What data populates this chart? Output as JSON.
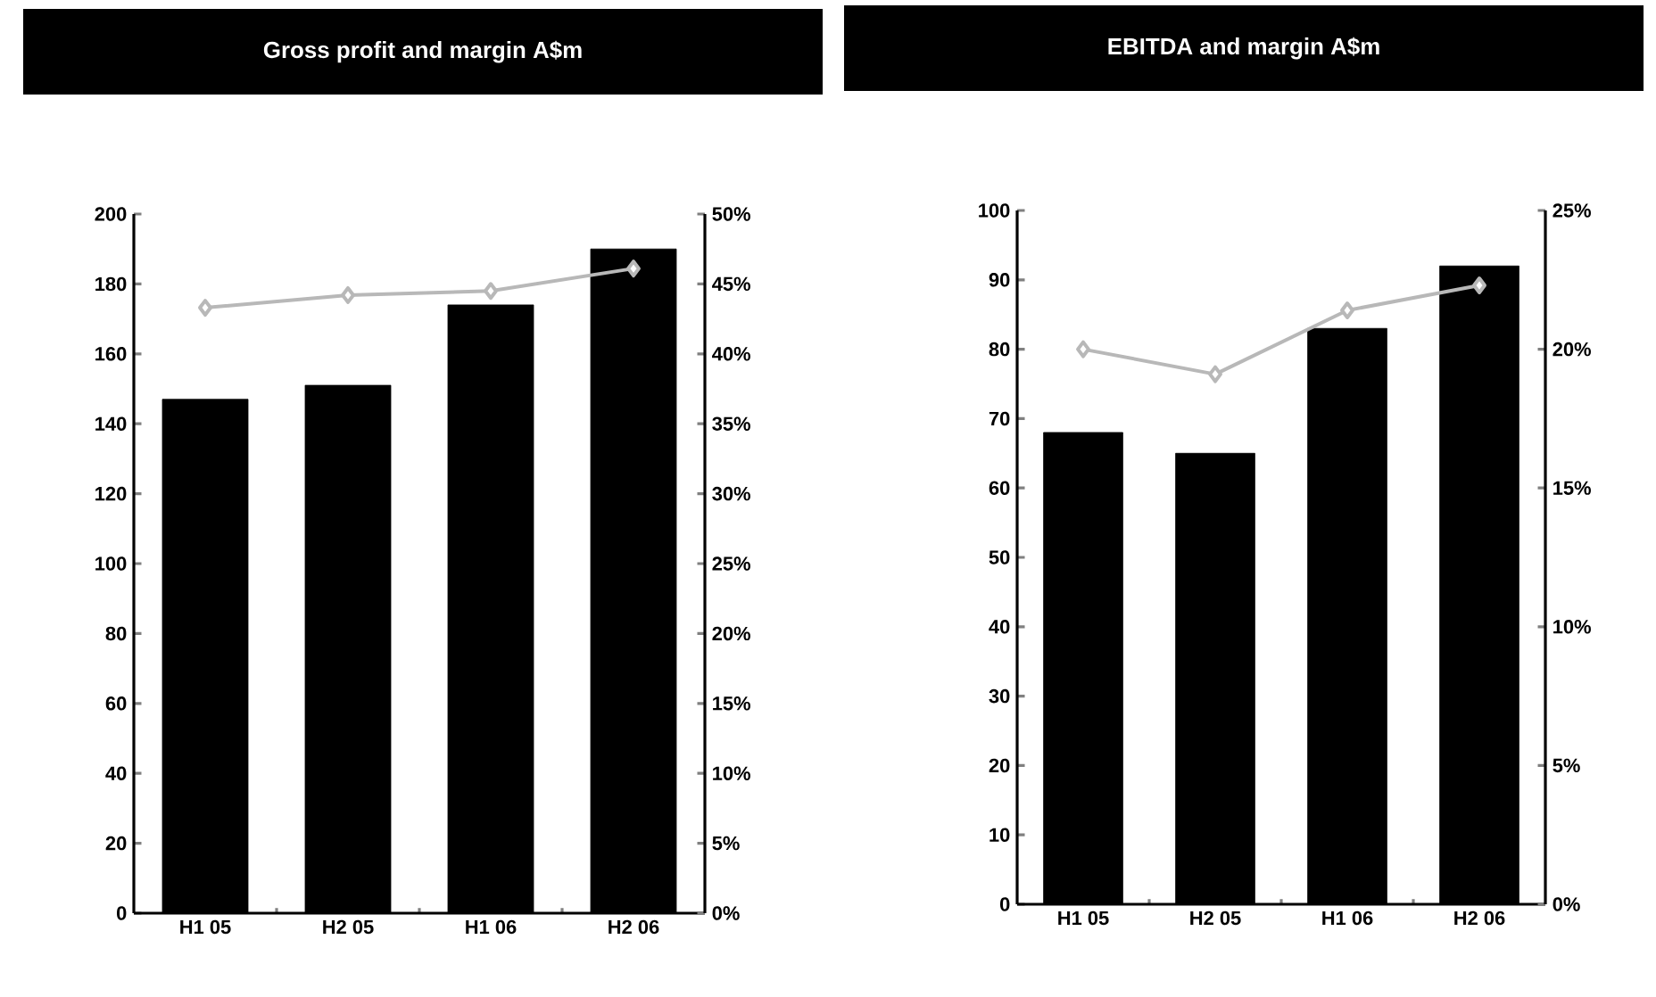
{
  "chart_data": [
    {
      "type": "bar",
      "title": "Gross profit and margin A$m",
      "categories": [
        "H1 05",
        "H2 05",
        "H1 06",
        "H2 06"
      ],
      "series": [
        {
          "color": "#000000",
          "values": [
            147,
            151,
            174,
            190
          ]
        },
        {
          "type": "line",
          "axis": "y2",
          "color": "#b8b8b8",
          "marker": "diamond",
          "values": [
            43.3,
            44.2,
            44.5,
            46.1
          ]
        }
      ],
      "ylim": [
        0,
        200
      ],
      "yticks": [
        0,
        20,
        40,
        60,
        80,
        100,
        120,
        140,
        160,
        180,
        200
      ],
      "y2lim": [
        0,
        50
      ],
      "y2ticks": [
        {
          "value": 0,
          "label": "0%"
        },
        {
          "value": 5,
          "label": "5%"
        },
        {
          "value": 10,
          "label": "10%"
        },
        {
          "value": 15,
          "label": "15%"
        },
        {
          "value": 20,
          "label": "20%"
        },
        {
          "value": 25,
          "label": "25%"
        },
        {
          "value": 30,
          "label": "30%"
        },
        {
          "value": 35,
          "label": "35%"
        },
        {
          "value": 40,
          "label": "40%"
        },
        {
          "value": 45,
          "label": "45%"
        },
        {
          "value": 50,
          "label": "50%"
        }
      ]
    },
    {
      "type": "bar",
      "title": "EBITDA and margin A$m",
      "categories": [
        "H1 05",
        "H2 05",
        "H1 06",
        "H2 06"
      ],
      "series": [
        {
          "color": "#000000",
          "values": [
            68,
            65,
            83,
            92
          ]
        },
        {
          "type": "line",
          "axis": "y2",
          "color": "#b8b8b8",
          "marker": "diamond",
          "values": [
            20.0,
            19.1,
            21.4,
            22.3
          ]
        }
      ],
      "ylim": [
        0,
        100
      ],
      "yticks": [
        0,
        10,
        20,
        30,
        40,
        50,
        60,
        70,
        80,
        90,
        100
      ],
      "y2lim": [
        0,
        25
      ],
      "y2ticks": [
        {
          "value": 0,
          "label": "0%"
        },
        {
          "value": 5,
          "label": "5%"
        },
        {
          "value": 10,
          "label": "10%"
        },
        {
          "value": 15,
          "label": "15%"
        },
        {
          "value": 20,
          "label": "20%"
        },
        {
          "value": 25,
          "label": "25%"
        }
      ]
    }
  ]
}
